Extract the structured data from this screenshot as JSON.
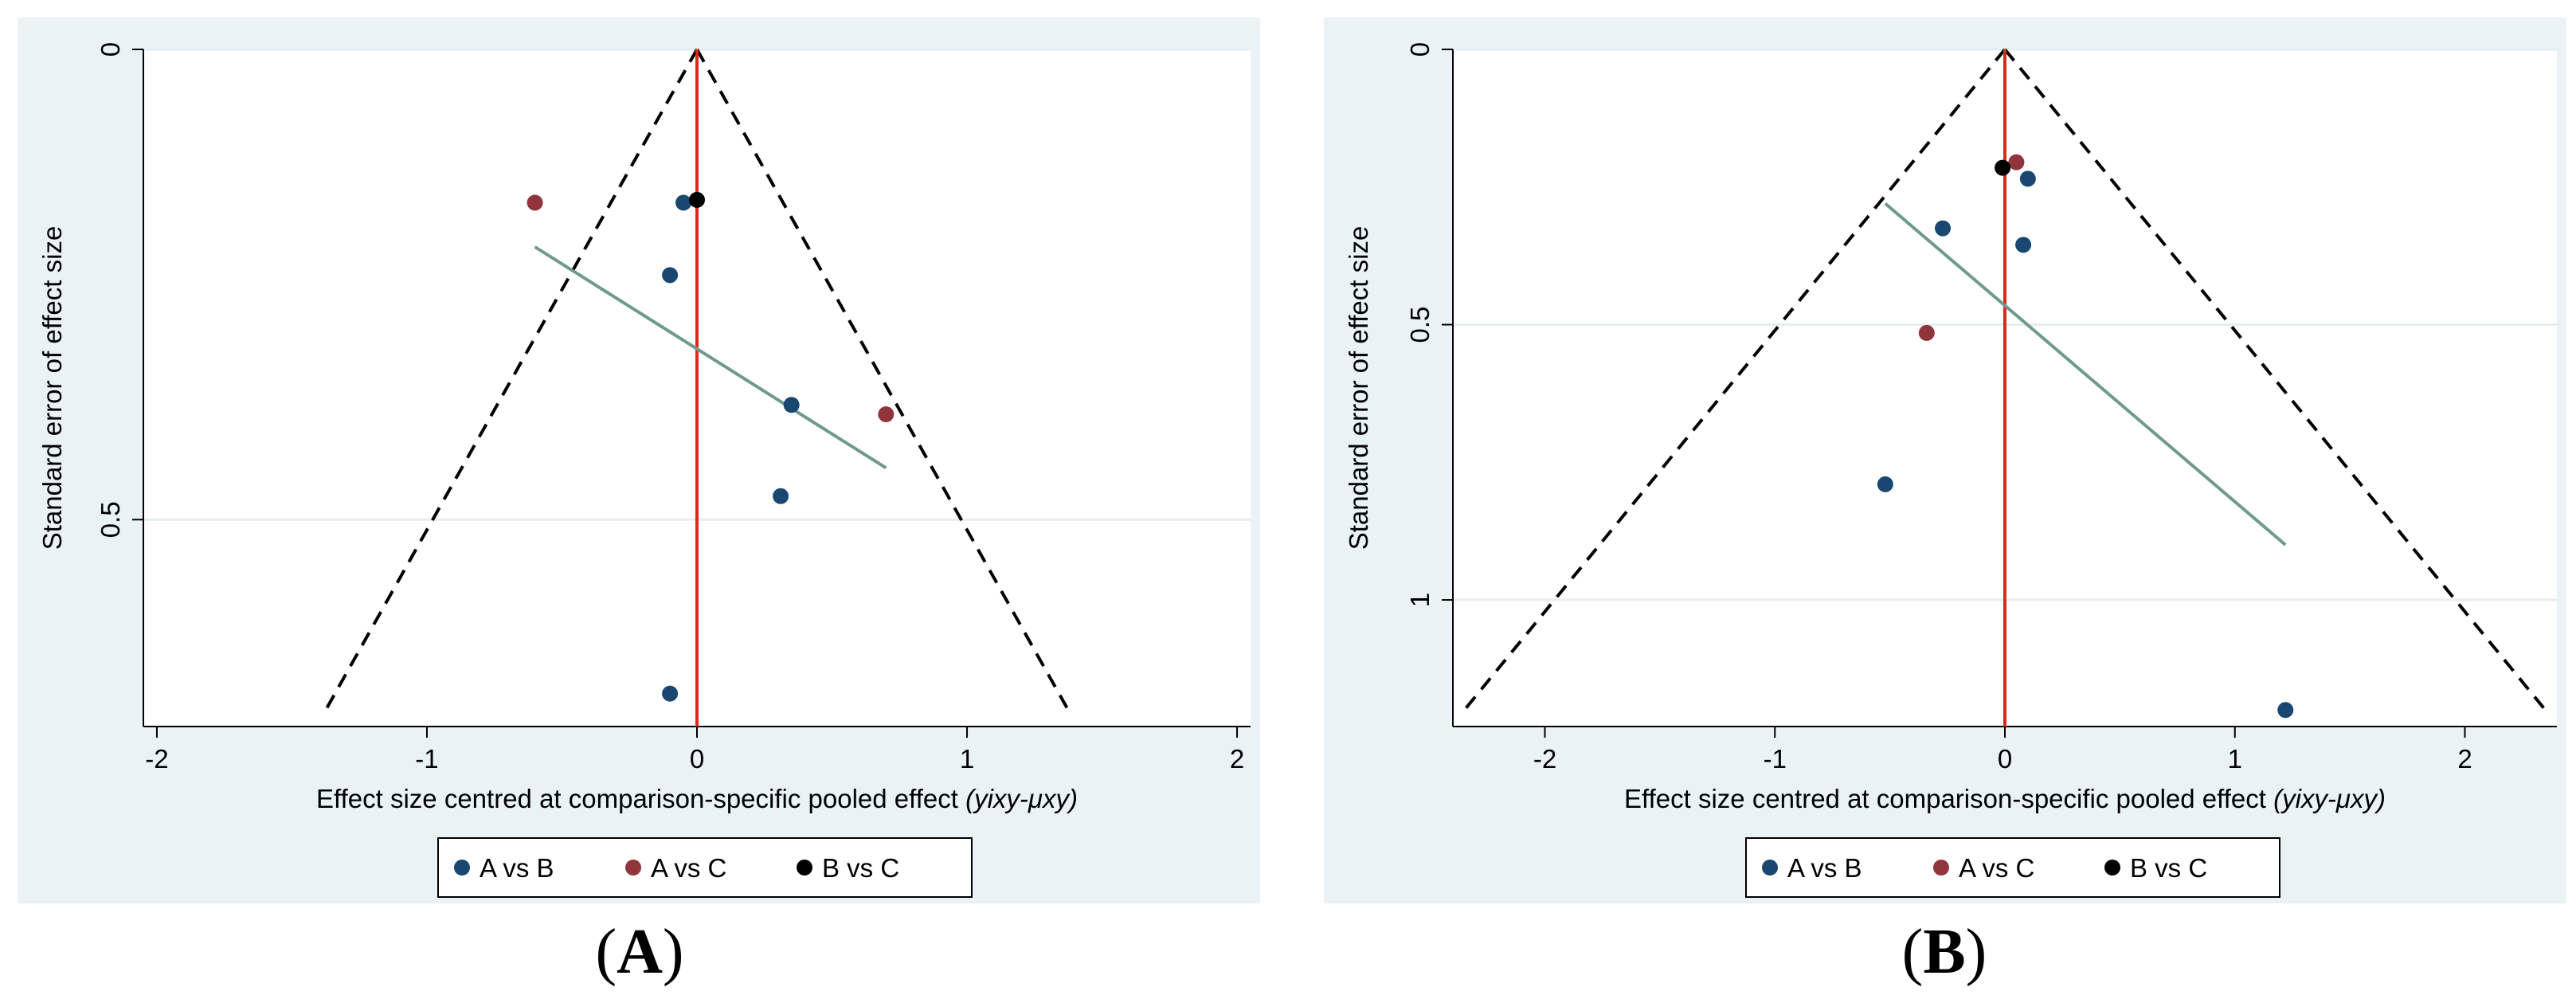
{
  "chart_data": [
    {
      "panel_label": "A",
      "type": "scatter",
      "subtype": "comparison-adjusted funnel plot",
      "xlabel": "Effect size centred at comparison-specific pooled effect",
      "xlabel_formula": "(yixy-μxy)",
      "ylabel": "Standard error of effect size",
      "xlim": [
        -2.05,
        2.05
      ],
      "ylim": [
        0,
        0.72
      ],
      "y_reversed": true,
      "x_ticks": [
        "-2",
        "-1",
        "0",
        "1",
        "2"
      ],
      "y_ticks": [
        "0",
        "0.5"
      ],
      "y_tick_values": [
        0,
        0.5
      ],
      "y_gridlines": [
        0,
        0.5
      ],
      "funnel": {
        "apex_se": 0,
        "base_se": 0.7,
        "base_x": [
          -1.37,
          1.37
        ]
      },
      "reference_line_x": 0,
      "regression_line": {
        "x": [
          -0.6,
          0.7
        ],
        "se": [
          0.21,
          0.445
        ]
      },
      "series": [
        {
          "name": "A vs B",
          "color": "#1a476f",
          "points": [
            {
              "x": -0.05,
              "se": 0.163
            },
            {
              "x": -0.1,
              "se": 0.24
            },
            {
              "x": 0.35,
              "se": 0.378
            },
            {
              "x": 0.31,
              "se": 0.475
            },
            {
              "x": -0.1,
              "se": 0.685
            }
          ]
        },
        {
          "name": "A vs C",
          "color": "#90353b",
          "points": [
            {
              "x": -0.6,
              "se": 0.163
            },
            {
              "x": 0.7,
              "se": 0.388
            }
          ]
        },
        {
          "name": "B vs C",
          "color": "#000000",
          "points": [
            {
              "x": 0.0,
              "se": 0.16
            }
          ]
        }
      ],
      "legend": [
        "A vs B",
        "A vs C",
        "B vs C"
      ],
      "legend_position": "bottom"
    },
    {
      "panel_label": "B",
      "type": "scatter",
      "subtype": "comparison-adjusted funnel plot",
      "xlabel": "Effect size centred at comparison-specific pooled effect",
      "xlabel_formula": "(yixy-μxy)",
      "ylabel": "Standard error of effect size",
      "xlim": [
        -2.4,
        2.4
      ],
      "ylim": [
        0,
        1.23
      ],
      "y_reversed": true,
      "x_ticks": [
        "-2",
        "-1",
        "0",
        "1",
        "2"
      ],
      "y_ticks": [
        "0",
        "0.5",
        "1"
      ],
      "y_tick_values": [
        0,
        0.5,
        1
      ],
      "y_gridlines": [
        0,
        0.5,
        1
      ],
      "funnel": {
        "apex_se": 0,
        "base_se": 1.2,
        "base_x": [
          -2.35,
          2.35
        ]
      },
      "reference_line_x": 0,
      "regression_line": {
        "x": [
          -0.52,
          1.22
        ],
        "se": [
          0.28,
          0.9
        ]
      },
      "series": [
        {
          "name": "A vs B",
          "color": "#1a476f",
          "points": [
            {
              "x": 0.1,
              "se": 0.235
            },
            {
              "x": -0.27,
              "se": 0.325
            },
            {
              "x": 0.08,
              "se": 0.355
            },
            {
              "x": -0.52,
              "se": 0.79
            },
            {
              "x": 1.22,
              "se": 1.2
            }
          ]
        },
        {
          "name": "A vs C",
          "color": "#90353b",
          "points": [
            {
              "x": 0.05,
              "se": 0.205
            },
            {
              "x": -0.34,
              "se": 0.515
            }
          ]
        },
        {
          "name": "B vs C",
          "color": "#000000",
          "points": [
            {
              "x": -0.01,
              "se": 0.215
            }
          ]
        }
      ],
      "legend": [
        "A vs B",
        "A vs C",
        "B vs C"
      ],
      "legend_position": "bottom"
    }
  ],
  "captions": [
    "A",
    "B"
  ]
}
